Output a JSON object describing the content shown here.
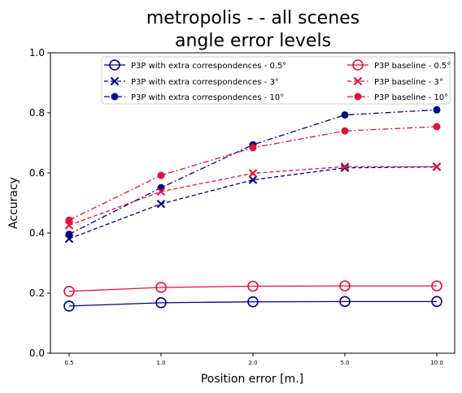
{
  "chart_data": {
    "type": "line",
    "title_line1": "metropolis -  - all scenes",
    "title_line2": "angle error levels",
    "xlabel": "Position error [m.]",
    "ylabel": "Accuracy",
    "categories": [
      "0.5",
      "1.0",
      "2.0",
      "5.0",
      "10.0"
    ],
    "ylim": [
      0.0,
      1.0
    ],
    "yticks": [
      "0.0",
      "0.2",
      "0.4",
      "0.6",
      "0.8",
      "1.0"
    ],
    "grid": false,
    "legend_placement": "top-right",
    "series": [
      {
        "name": "P3P with extra correspondences - 0.5°",
        "color": "#000080",
        "dash": "solid",
        "marker": "open-circle",
        "values": [
          0.157,
          0.168,
          0.171,
          0.172,
          0.172
        ]
      },
      {
        "name": "P3P with extra correspondences - 3°",
        "color": "#000080",
        "dash": "dashed",
        "marker": "x",
        "values": [
          0.381,
          0.497,
          0.577,
          0.617,
          0.62
        ]
      },
      {
        "name": "P3P with extra correspondences - 10°",
        "color": "#000080",
        "dash": "dashdot",
        "marker": "filled-circle",
        "values": [
          0.396,
          0.551,
          0.694,
          0.793,
          0.81
        ]
      },
      {
        "name": "P3P baseline - 0.5°",
        "color": "#dc143c",
        "dash": "solid",
        "marker": "open-circle",
        "values": [
          0.206,
          0.219,
          0.223,
          0.224,
          0.224
        ]
      },
      {
        "name": "P3P baseline - 3°",
        "color": "#dc143c",
        "dash": "dashed",
        "marker": "x",
        "values": [
          0.426,
          0.538,
          0.599,
          0.621,
          0.621
        ]
      },
      {
        "name": "P3P baseline - 10°",
        "color": "#dc143c",
        "dash": "dashdot",
        "marker": "filled-circle",
        "values": [
          0.443,
          0.592,
          0.684,
          0.74,
          0.754
        ]
      }
    ]
  }
}
